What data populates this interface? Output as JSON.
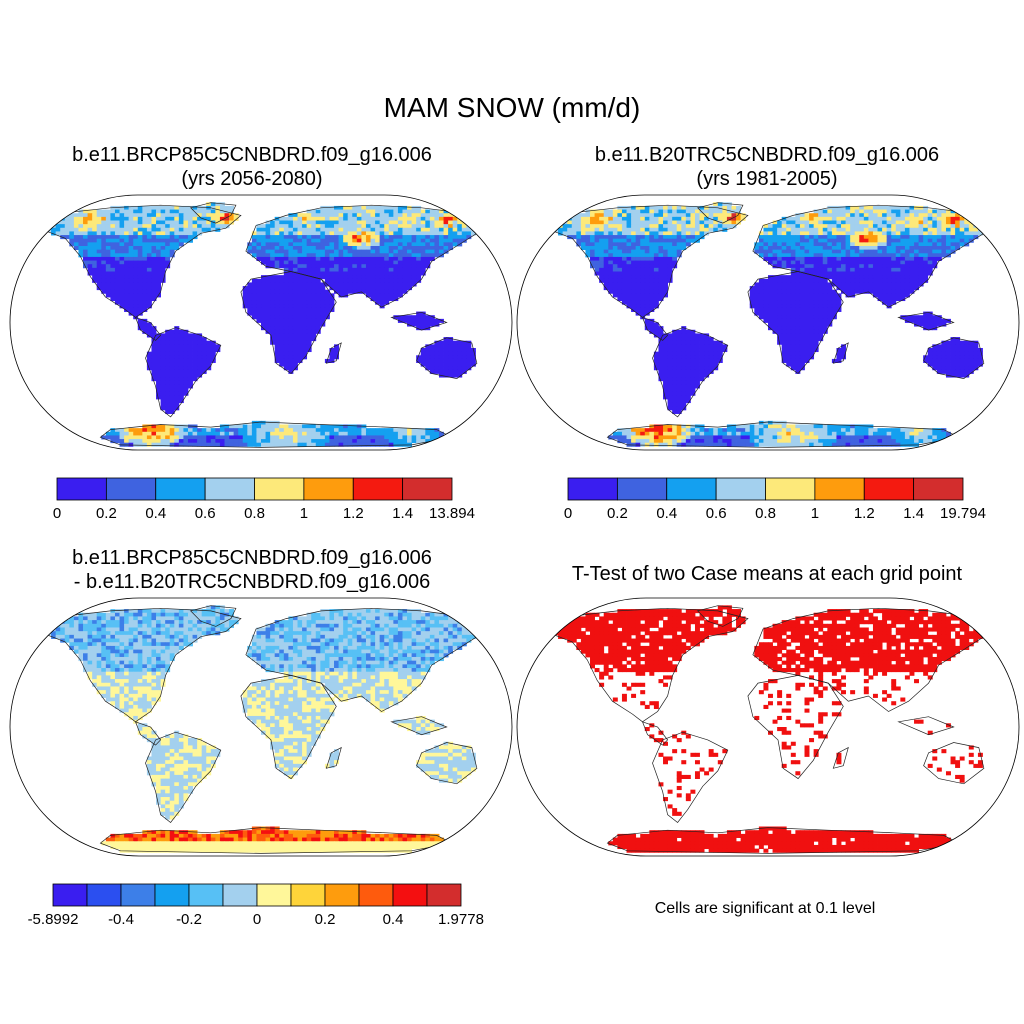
{
  "figure": {
    "title": "MAM SNOW (mm/d)",
    "significance_note": "Cells are significant at 0.1 level"
  },
  "panels": [
    {
      "id": "case1",
      "title_line1": "b.e11.BRCP85C5CNBDRD.f09_g16.006",
      "title_line2": "(yrs 2056-2080)",
      "colorbar_labels": [
        "0",
        "0.2",
        "0.4",
        "0.6",
        "0.8",
        "1",
        "1.2",
        "1.4",
        "13.894"
      ],
      "colorbar_colors": [
        "#3a1ef0",
        "#3f63e0",
        "#14a0f0",
        "#a3d0ee",
        "#fde97a",
        "#fe9c0d",
        "#f41a10",
        "#d32d2d"
      ]
    },
    {
      "id": "case2",
      "title_line1": "b.e11.B20TRC5CNBDRD.f09_g16.006",
      "title_line2": "(yrs 1981-2005)",
      "colorbar_labels": [
        "0",
        "0.2",
        "0.4",
        "0.6",
        "0.8",
        "1",
        "1.2",
        "1.4",
        "19.794"
      ],
      "colorbar_colors": [
        "#3a1ef0",
        "#3f63e0",
        "#14a0f0",
        "#a3d0ee",
        "#fde97a",
        "#fe9c0d",
        "#f41a10",
        "#d32d2d"
      ]
    },
    {
      "id": "difference",
      "title_line1": "b.e11.BRCP85C5CNBDRD.f09_g16.006",
      "title_line2": "- b.e11.B20TRC5CNBDRD.f09_g16.006",
      "colorbar_labels": [
        "-5.8992",
        "-0.4",
        "-0.2",
        "0",
        "0.2",
        "0.4",
        "1.9778"
      ],
      "colorbar_colors": [
        "#3a1ef0",
        "#2b4ff0",
        "#3d7fe8",
        "#14a0f0",
        "#57c0f5",
        "#a3d0ee",
        "#fff79a",
        "#fed43a",
        "#fe9c0d",
        "#fe5b0d",
        "#f40f10",
        "#d32d2d"
      ]
    },
    {
      "id": "ttest",
      "title_line1": "T-Test of two Case means at each grid point",
      "significance_color": "#f01010"
    }
  ]
}
